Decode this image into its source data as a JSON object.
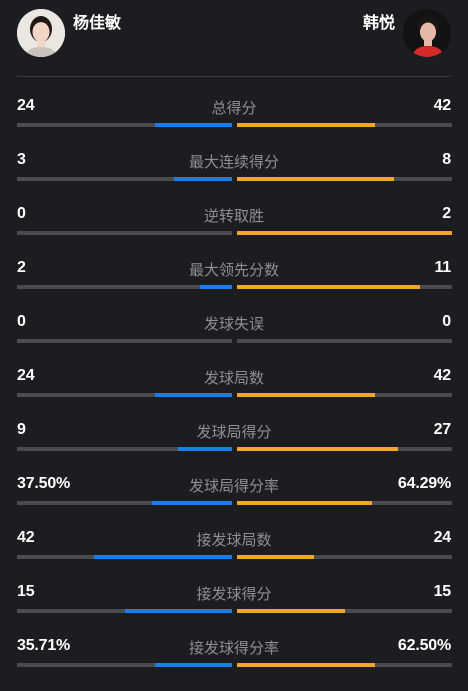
{
  "players": {
    "left": {
      "name": "杨佳敏"
    },
    "right": {
      "name": "韩悦"
    }
  },
  "colors": {
    "left_bar": "#1a7fe6",
    "right_bar": "#f5a623",
    "track": "#4a4b50",
    "background": "#1c1d21"
  },
  "stats": [
    {
      "label": "总得分",
      "left": "24",
      "right": "42",
      "left_fill": 0.36,
      "right_fill": 0.64
    },
    {
      "label": "最大连续得分",
      "left": "3",
      "right": "8",
      "left_fill": 0.27,
      "right_fill": 0.73
    },
    {
      "label": "逆转取胜",
      "left": "0",
      "right": "2",
      "left_fill": 0.0,
      "right_fill": 1.0
    },
    {
      "label": "最大领先分数",
      "left": "2",
      "right": "11",
      "left_fill": 0.15,
      "right_fill": 0.85
    },
    {
      "label": "发球失误",
      "left": "0",
      "right": "0",
      "left_fill": 0.0,
      "right_fill": 0.0
    },
    {
      "label": "发球局数",
      "left": "24",
      "right": "42",
      "left_fill": 0.36,
      "right_fill": 0.64
    },
    {
      "label": "发球局得分",
      "left": "9",
      "right": "27",
      "left_fill": 0.25,
      "right_fill": 0.75
    },
    {
      "label": "发球局得分率",
      "left": "37.50%",
      "right": "64.29%",
      "left_fill": 0.37,
      "right_fill": 0.63
    },
    {
      "label": "接发球局数",
      "left": "42",
      "right": "24",
      "left_fill": 0.64,
      "right_fill": 0.36
    },
    {
      "label": "接发球得分",
      "left": "15",
      "right": "15",
      "left_fill": 0.5,
      "right_fill": 0.5
    },
    {
      "label": "接发球得分率",
      "left": "35.71%",
      "right": "62.50%",
      "left_fill": 0.36,
      "right_fill": 0.64
    }
  ]
}
